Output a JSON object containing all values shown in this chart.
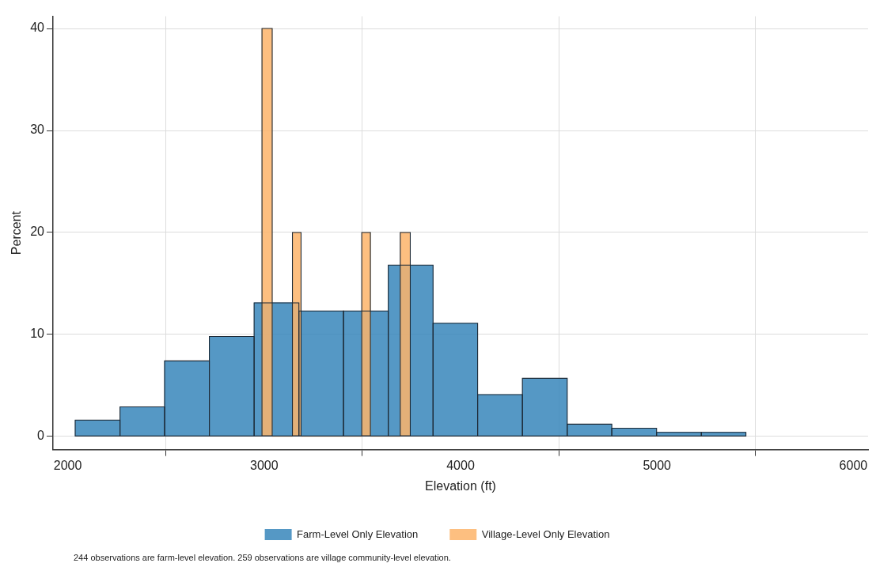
{
  "chart_data": {
    "type": "histogram",
    "xlabel": "Elevation (ft)",
    "ylabel": "Percent",
    "bins": [
      2038,
      2266,
      2493,
      2721,
      2949,
      3177,
      3404,
      3632,
      3860,
      4087,
      4315,
      4543,
      4770,
      4998,
      5226,
      5453
    ],
    "series": [
      {
        "name": "Farm-Level Only Elevation",
        "color": "#5598c5",
        "values": [
          1.6,
          2.9,
          7.4,
          9.8,
          13.1,
          12.3,
          12.3,
          16.8,
          11.1,
          4.1,
          5.7,
          1.2,
          0.8,
          0.4,
          0.4
        ]
      },
      {
        "name": "Village-Level Only Elevation",
        "color": "#fdbf80",
        "bins": [
          2989,
          3041,
          3144,
          3188,
          3497,
          3541,
          3693,
          3744
        ],
        "values": [
          40,
          0,
          20,
          0,
          20,
          0,
          20
        ]
      }
    ],
    "xlim": [
      1925,
      6075
    ],
    "xticks": [
      2000,
      3000,
      4000,
      5000,
      6000
    ],
    "ylim": [
      -1.3,
      41.2
    ],
    "yticks": [
      0,
      10,
      20,
      30,
      40
    ],
    "grid": true,
    "legend": "bottom",
    "annotations": [
      "244 observations are farm-level elevation. 259 observations are village community-level elevation."
    ]
  }
}
